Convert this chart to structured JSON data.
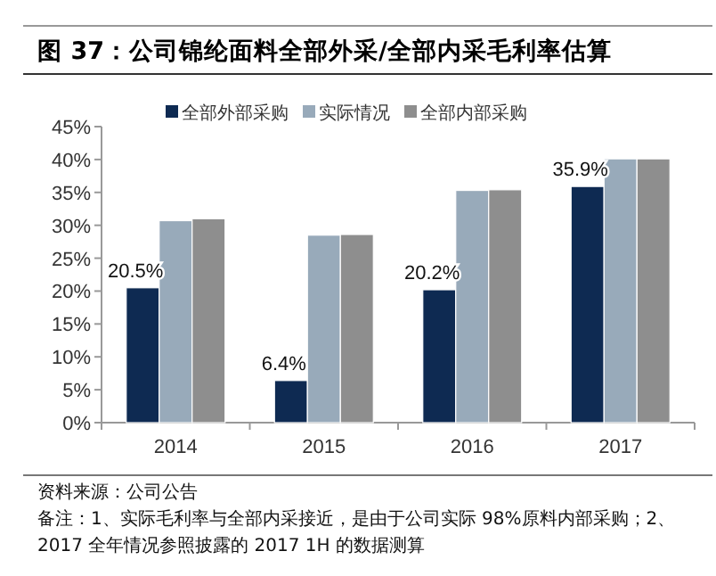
{
  "chart_data": {
    "type": "bar",
    "title": "图 37：公司锦纶面料全部外采/全部内采毛利率估算",
    "categories": [
      "2014",
      "2015",
      "2016",
      "2017"
    ],
    "series": [
      {
        "name": "全部外部采购",
        "color": "#0e2a52",
        "values": [
          20.5,
          6.4,
          20.2,
          35.9
        ],
        "value_labels": [
          "20.5%",
          "6.4%",
          "20.2%",
          "35.9%"
        ]
      },
      {
        "name": "实际情况",
        "color": "#98aaba",
        "values": [
          30.7,
          28.5,
          35.3,
          40.1
        ]
      },
      {
        "name": "全部内部采购",
        "color": "#8e8e8e",
        "values": [
          31.0,
          28.6,
          35.4,
          40.1
        ]
      }
    ],
    "ylim": [
      0,
      45
    ],
    "yticks": [
      {
        "value": 0,
        "label": "0%"
      },
      {
        "value": 5,
        "label": "5%"
      },
      {
        "value": 10,
        "label": "10%"
      },
      {
        "value": 15,
        "label": "15%"
      },
      {
        "value": 20,
        "label": "20%"
      },
      {
        "value": 25,
        "label": "25%"
      },
      {
        "value": 30,
        "label": "30%"
      },
      {
        "value": 35,
        "label": "35%"
      },
      {
        "value": 40,
        "label": "40%"
      },
      {
        "value": 45,
        "label": "45%"
      }
    ],
    "legend": "top",
    "annotations": [
      "资料来源：公司公告",
      "备注：1、实际毛利率与全部内采接近，是由于公司实际 98%原料内部采购；2、2017 全年情况参照披露的 2017 1H 的数据测算"
    ]
  }
}
